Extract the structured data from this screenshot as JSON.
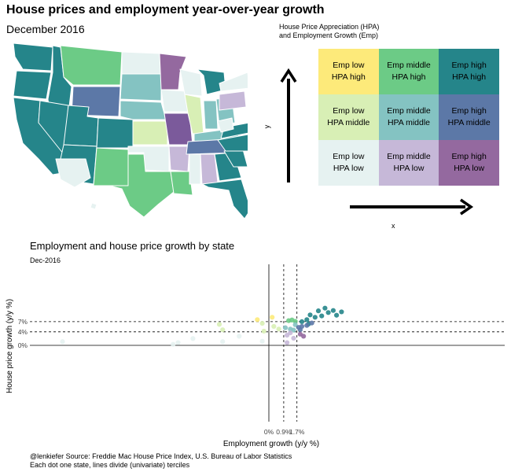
{
  "title": "House prices and employment year-over-year growth",
  "subtitle": "December 2016",
  "legend": {
    "title_line1": "House Price Appreciation (HPA)",
    "title_line2": "and Employment Growth (Emp)",
    "y_arrow_label": "y",
    "x_arrow_label": "x",
    "cells": [
      {
        "label": "Emp low\nHPA high",
        "color": "#fdea7a"
      },
      {
        "label": "Emp middle\nHPA high",
        "color": "#6ccb86"
      },
      {
        "label": "Emp high\nHPA high",
        "color": "#25858a"
      },
      {
        "label": "Emp low\nHPA middle",
        "color": "#d8efb5"
      },
      {
        "label": "Emp middle\nHPA middle",
        "color": "#84c3c2"
      },
      {
        "label": "Emp high\nHPA middle",
        "color": "#5c78a7"
      },
      {
        "label": "Emp low\nHPA low",
        "color": "#e6f2f1"
      },
      {
        "label": "Emp middle\nHPA low",
        "color": "#c6b8d8"
      },
      {
        "label": "Emp high\nHPA low",
        "color": "#94699f"
      }
    ]
  },
  "map": {
    "colors": {
      "teal": "#25858a",
      "green": "#6ccb86",
      "yellow": "#fdea7a",
      "paleGreen": "#d8efb5",
      "midTeal": "#84c3c2",
      "slate": "#5c78a7",
      "pale": "#e6f2f1",
      "lilac": "#c6b8d8",
      "purple": "#94699f",
      "darkPurple": "#7b5a9b"
    }
  },
  "scatter": {
    "title": "Employment and house price growth by state",
    "subtitle": "Dec-2016",
    "xlabel": "Employment growth (y/y %)",
    "ylabel": "House price growth (y/y %)",
    "x_ticks": [
      "0%",
      "0.9%",
      "1.7%"
    ],
    "y_ticks": [
      "0%",
      "4%",
      "7%"
    ]
  },
  "footer": {
    "line1": "@lenkiefer Source: Freddie Mac House Price Index, U.S. Bureau of Labor Statistics",
    "line2": "Each dot one state, lines divide (univariate) terciles"
  },
  "chart_data": {
    "type": "scatter",
    "title": "Employment and house price growth by state",
    "subtitle": "Dec-2016",
    "xlabel": "Employment growth (y/y %)",
    "ylabel": "House price growth (y/y %)",
    "xlim": [
      -14,
      5
    ],
    "ylim": [
      -16,
      11
    ],
    "x_terciles": [
      0.9,
      1.7
    ],
    "y_terciles": [
      4,
      7
    ],
    "points": [
      {
        "x": 2.0,
        "y": 7.0,
        "color": "#25858a"
      },
      {
        "x": 2.3,
        "y": 7.6,
        "color": "#25858a"
      },
      {
        "x": 2.4,
        "y": 6.3,
        "color": "#25858a"
      },
      {
        "x": 2.5,
        "y": 9.0,
        "color": "#25858a"
      },
      {
        "x": 2.8,
        "y": 8.3,
        "color": "#25858a"
      },
      {
        "x": 3.0,
        "y": 10.2,
        "color": "#25858a"
      },
      {
        "x": 3.2,
        "y": 8.7,
        "color": "#25858a"
      },
      {
        "x": 3.4,
        "y": 11.0,
        "color": "#25858a"
      },
      {
        "x": 3.6,
        "y": 9.7,
        "color": "#25858a"
      },
      {
        "x": 3.9,
        "y": 10.3,
        "color": "#25858a"
      },
      {
        "x": 4.1,
        "y": 8.9,
        "color": "#25858a"
      },
      {
        "x": 4.4,
        "y": 9.9,
        "color": "#25858a"
      },
      {
        "x": 1.2,
        "y": 7.3,
        "color": "#6ccb86"
      },
      {
        "x": 1.4,
        "y": 7.5,
        "color": "#6ccb86"
      },
      {
        "x": 1.6,
        "y": 7.1,
        "color": "#6ccb86"
      },
      {
        "x": 0.2,
        "y": 8.3,
        "color": "#fdea7a"
      },
      {
        "x": -0.7,
        "y": 7.6,
        "color": "#fdea7a"
      },
      {
        "x": 1.3,
        "y": 4.8,
        "color": "#84c3c2"
      },
      {
        "x": 1.6,
        "y": 6.1,
        "color": "#84c3c2"
      },
      {
        "x": 1.0,
        "y": 5.2,
        "color": "#84c3c2"
      },
      {
        "x": 1.5,
        "y": 4.5,
        "color": "#84c3c2"
      },
      {
        "x": 1.8,
        "y": 5.3,
        "color": "#5c78a7"
      },
      {
        "x": 2.0,
        "y": 5.6,
        "color": "#5c78a7"
      },
      {
        "x": 1.9,
        "y": 4.6,
        "color": "#5c78a7"
      },
      {
        "x": 2.3,
        "y": 5.9,
        "color": "#5c78a7"
      },
      {
        "x": 2.6,
        "y": 6.6,
        "color": "#5c78a7"
      },
      {
        "x": 0.3,
        "y": 5.6,
        "color": "#d8efb5"
      },
      {
        "x": 0.6,
        "y": 4.8,
        "color": "#d8efb5"
      },
      {
        "x": -0.3,
        "y": 4.2,
        "color": "#d8efb5"
      },
      {
        "x": -2.8,
        "y": 4.6,
        "color": "#d8efb5"
      },
      {
        "x": -0.4,
        "y": 6.5,
        "color": "#d8efb5"
      },
      {
        "x": -3.0,
        "y": 6.2,
        "color": "#d8efb5"
      },
      {
        "x": 1.1,
        "y": 3.0,
        "color": "#c6b8d8"
      },
      {
        "x": 1.3,
        "y": 3.7,
        "color": "#c6b8d8"
      },
      {
        "x": 1.1,
        "y": 0.8,
        "color": "#c6b8d8"
      },
      {
        "x": 1.5,
        "y": 2.1,
        "color": "#c6b8d8"
      },
      {
        "x": 1.9,
        "y": 3.3,
        "color": "#94699f"
      },
      {
        "x": 2.1,
        "y": 2.7,
        "color": "#94699f"
      },
      {
        "x": -4.6,
        "y": 2.0,
        "color": "#e6f2f1"
      },
      {
        "x": -5.5,
        "y": 0.8,
        "color": "#e6f2f1"
      },
      {
        "x": -5.8,
        "y": 0.3,
        "color": "#e6f2f1"
      },
      {
        "x": -1.8,
        "y": 2.7,
        "color": "#e6f2f1"
      },
      {
        "x": -2.8,
        "y": 1.1,
        "color": "#e6f2f1"
      },
      {
        "x": -0.4,
        "y": 1.2,
        "color": "#e6f2f1"
      },
      {
        "x": -12.5,
        "y": 1.1,
        "color": "#e6f2f1"
      }
    ]
  }
}
